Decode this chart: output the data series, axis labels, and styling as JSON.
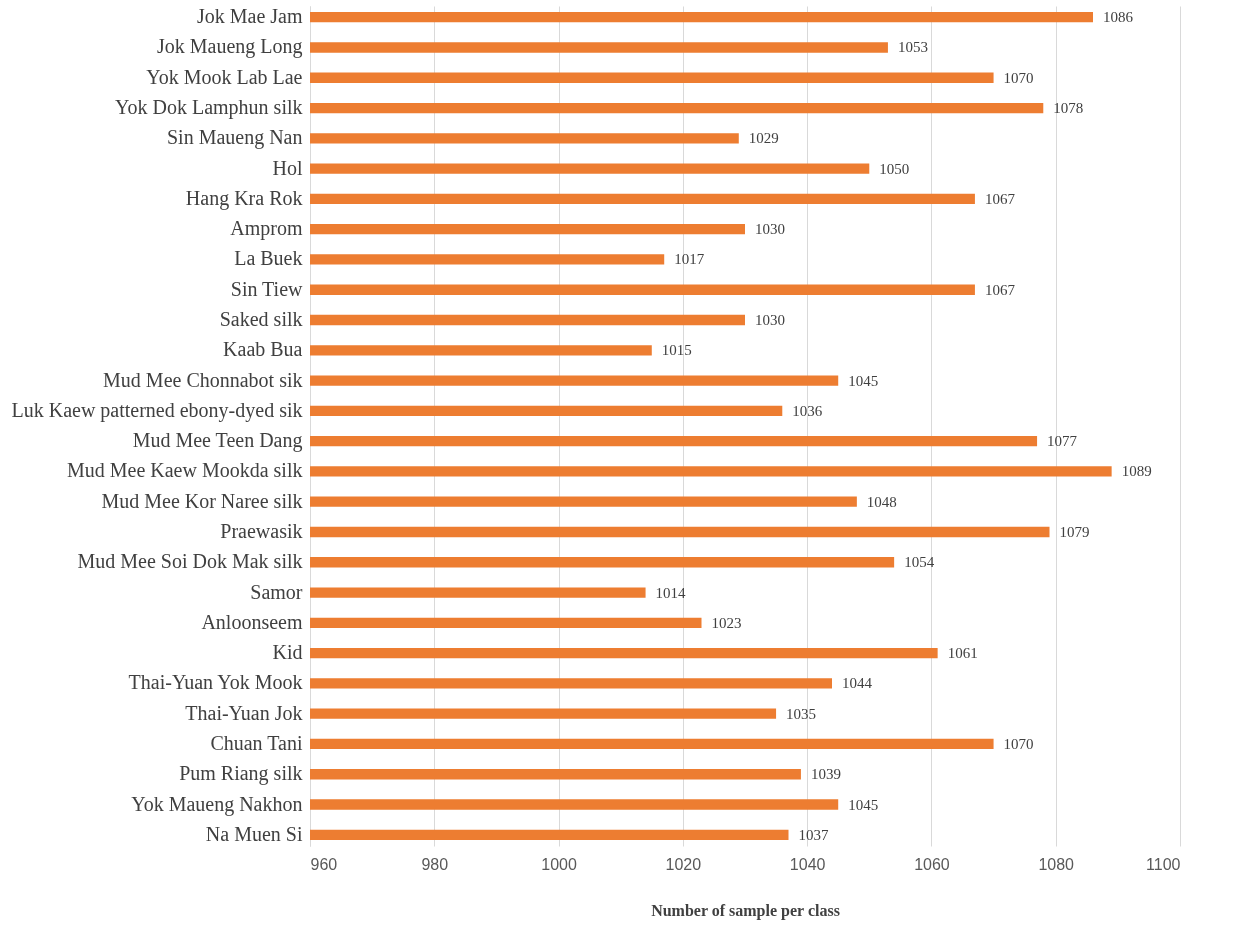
{
  "chart_data": {
    "type": "bar",
    "orientation": "horizontal",
    "categories": [
      "Jok Mae Jam",
      "Jok Maueng Long",
      "Yok Mook Lab Lae",
      "Yok Dok Lamphun silk",
      "Sin Maueng Nan",
      "Hol",
      "Hang Kra Rok",
      "Amprom",
      "La Buek",
      "Sin Tiew",
      "Saked silk",
      "Kaab Bua",
      "Mud Mee Chonnabot sik",
      "Luk Kaew patterned ebony-dyed sik",
      "Mud Mee Teen Dang",
      "Mud Mee Kaew Mookda silk",
      "Mud Mee Kor Naree silk",
      "Praewasik",
      "Mud Mee Soi Dok Mak silk",
      "Samor",
      "Anloonseem",
      "Kid",
      "Thai-Yuan Yok Mook",
      "Thai-Yuan Jok",
      "Chuan Tani",
      "Pum Riang silk",
      "Yok Maueng Nakhon",
      "Na Muen Si"
    ],
    "values": [
      1086,
      1053,
      1070,
      1078,
      1029,
      1050,
      1067,
      1030,
      1017,
      1067,
      1030,
      1015,
      1045,
      1036,
      1077,
      1089,
      1048,
      1079,
      1054,
      1014,
      1023,
      1061,
      1044,
      1035,
      1070,
      1039,
      1045,
      1037
    ],
    "color": "#ed7d31",
    "xlabel": "Number of sample per class",
    "xlim": [
      960,
      1100
    ],
    "xticks": [
      960,
      980,
      {
        "value": 1000,
        "label": "1000"
      },
      {
        "value": 1020,
        "label": "1020"
      },
      {
        "value": 1040,
        "label": "1040"
      },
      {
        "value": 1060,
        "label": "1060"
      },
      {
        "value": 1080,
        "label": "1080"
      },
      {
        "value": 1100,
        "label": "1100"
      }
    ],
    "grid": "x",
    "data_labels": true
  }
}
